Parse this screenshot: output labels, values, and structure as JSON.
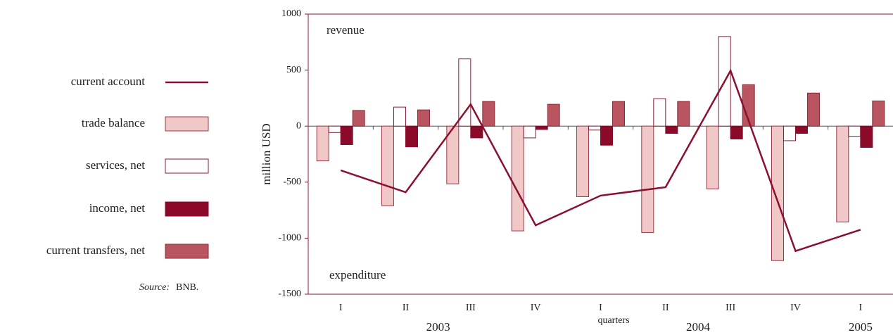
{
  "chart_data": {
    "type": "bar",
    "y_label": "million USD",
    "x_label": "quarters",
    "annotations": [
      "revenue",
      "expenditure"
    ],
    "source_label": "Source:",
    "source": "BNB.",
    "categories": [
      "I",
      "II",
      "III",
      "IV",
      "I",
      "II",
      "III",
      "IV",
      "I"
    ],
    "years": [
      "2003",
      "2004",
      "2005"
    ],
    "ylim": [
      -1500,
      1000
    ],
    "yticks": [
      -1500,
      -1000,
      -500,
      0,
      500,
      1000
    ],
    "line": {
      "name": "current account",
      "color": "#8b1030",
      "values": [
        -395,
        -590,
        195,
        -885,
        -620,
        -545,
        495,
        -1115,
        -925
      ]
    },
    "series": [
      {
        "name": "trade balance",
        "color": "#f0c8c8",
        "stroke": "#a03848",
        "values": [
          -310,
          -710,
          -515,
          -935,
          -630,
          -950,
          -560,
          -1200,
          -855
        ]
      },
      {
        "name": "services, net",
        "color": "#ffffff",
        "stroke": "#8b1a30",
        "values": [
          -57,
          170,
          600,
          -105,
          -35,
          245,
          800,
          -130,
          -90
        ]
      },
      {
        "name": "income, net",
        "color": "#8b0a2a",
        "stroke": "#8b0a2a",
        "values": [
          -165,
          -185,
          -105,
          -30,
          -170,
          -65,
          -115,
          -65,
          -190
        ]
      },
      {
        "name": "current transfers, net",
        "color": "#b85560",
        "stroke": "#8b2a38",
        "values": [
          140,
          145,
          220,
          195,
          220,
          220,
          370,
          295,
          225
        ]
      }
    ]
  }
}
